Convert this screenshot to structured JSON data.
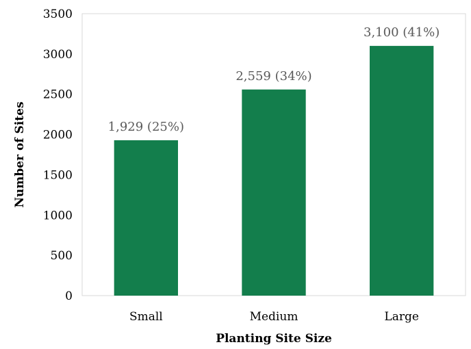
{
  "chart_data": {
    "type": "bar",
    "title": "",
    "xlabel": "Planting Site Size",
    "ylabel": "Number of Sites",
    "categories": [
      "Small",
      "Medium",
      "Large"
    ],
    "values": [
      1929,
      2559,
      3100
    ],
    "data_labels": [
      "1,929 (25%)",
      "2,559 (34%)",
      "3,100 (41%)"
    ],
    "ylim": [
      0,
      3500
    ],
    "yticks": [
      0,
      500,
      1000,
      1500,
      2000,
      2500,
      3000,
      3500
    ],
    "bar_color": "#137E4C",
    "grid": false,
    "legend": "none"
  }
}
